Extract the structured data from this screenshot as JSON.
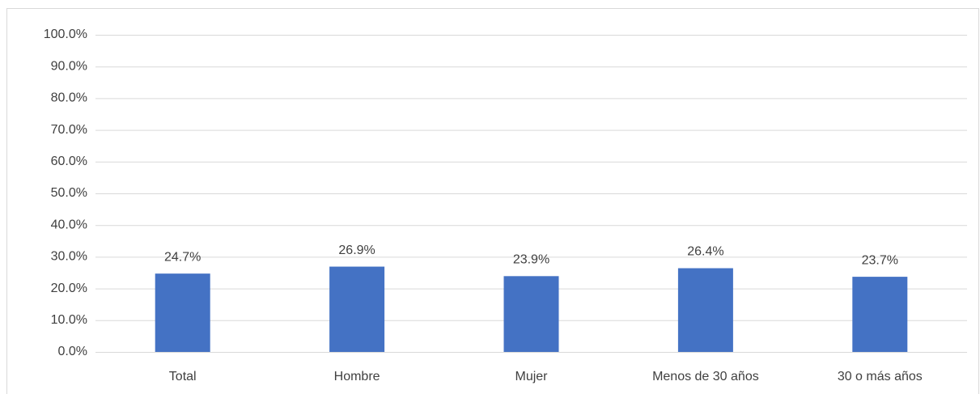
{
  "chart_data": {
    "type": "bar",
    "categories": [
      "Total",
      "Hombre",
      "Mujer",
      "Menos de 30 años",
      "30 o más años"
    ],
    "values": [
      24.7,
      26.9,
      23.9,
      26.4,
      23.7
    ],
    "value_labels": [
      "24.7%",
      "26.9%",
      "23.9%",
      "26.4%",
      "23.7%"
    ],
    "color": "#4472c4",
    "ylim": [
      0,
      100
    ],
    "yticks": [
      {
        "value": 0,
        "label": "0.0%"
      },
      {
        "value": 10,
        "label": "10.0%"
      },
      {
        "value": 20,
        "label": "20.0%"
      },
      {
        "value": 30,
        "label": "30.0%"
      },
      {
        "value": 40,
        "label": "40.0%"
      },
      {
        "value": 50,
        "label": "50.0%"
      },
      {
        "value": 60,
        "label": "60.0%"
      },
      {
        "value": 70,
        "label": "70.0%"
      },
      {
        "value": 80,
        "label": "80.0%"
      },
      {
        "value": 90,
        "label": "90.0%"
      },
      {
        "value": 100,
        "label": "100.0%"
      }
    ],
    "grid": true
  }
}
